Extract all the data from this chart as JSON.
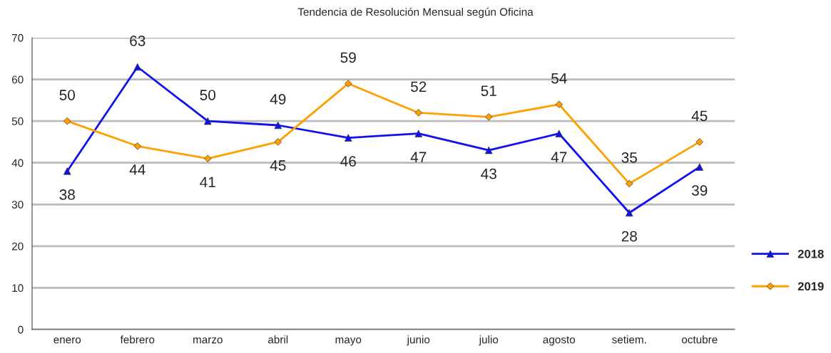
{
  "chart_data": {
    "type": "line",
    "title": "Tendencia de Resolución Mensual según Oficina",
    "categories": [
      "enero",
      "febrero",
      "marzo",
      "abril",
      "mayo",
      "junio",
      "julio",
      "agosto",
      "setiem.",
      "octubre"
    ],
    "series": [
      {
        "name": "2018",
        "color": "#1010f0",
        "marker": "triangle",
        "values": [
          38,
          63,
          50,
          49,
          46,
          47,
          43,
          47,
          28,
          39
        ]
      },
      {
        "name": "2019",
        "color": "#ffa000",
        "marker": "diamond",
        "values": [
          50,
          44,
          41,
          45,
          59,
          52,
          51,
          54,
          35,
          45
        ]
      }
    ],
    "ylim": [
      0,
      70
    ],
    "yticks": [
      0,
      10,
      20,
      30,
      40,
      50,
      60,
      70
    ],
    "grid": "y",
    "legend": "right",
    "data_labels": true,
    "line_style": "solid"
  }
}
